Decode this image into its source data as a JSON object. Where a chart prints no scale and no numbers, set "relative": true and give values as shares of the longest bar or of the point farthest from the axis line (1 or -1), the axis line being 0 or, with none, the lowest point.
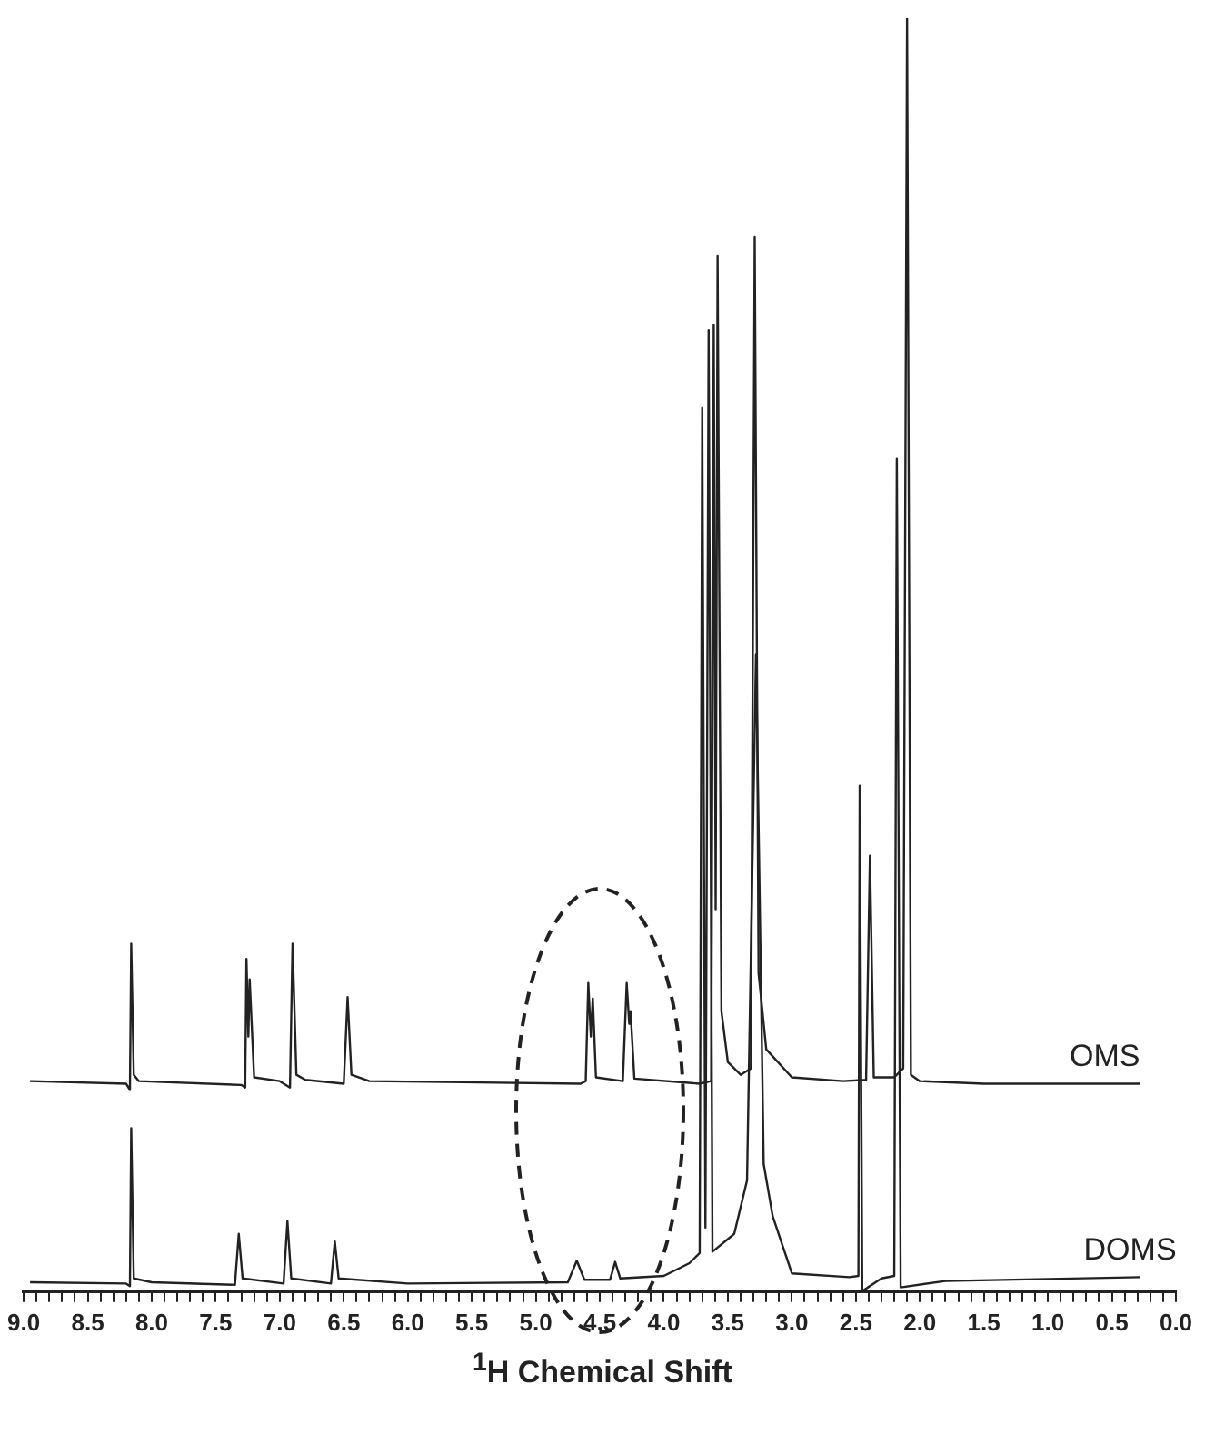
{
  "chart_data": {
    "type": "line",
    "relative": true,
    "xlabel": "$^{1}$H Chemical Shift",
    "xlim": [
      9.0,
      0.0
    ],
    "xticks": [
      {
        "value": 9,
        "label": "9.0"
      },
      {
        "value": 8.9,
        "label": null
      },
      {
        "value": 8.8,
        "label": null
      },
      {
        "value": 8.7,
        "label": null
      },
      {
        "value": 8.6,
        "label": null
      },
      {
        "value": 8.5,
        "label": "8.5"
      },
      {
        "value": 8.4,
        "label": null
      },
      {
        "value": 8.3,
        "label": null
      },
      {
        "value": 8.2,
        "label": null
      },
      {
        "value": 8.1,
        "label": null
      },
      {
        "value": 8,
        "label": "8.0"
      },
      {
        "value": 7.9,
        "label": null
      },
      {
        "value": 7.8,
        "label": null
      },
      {
        "value": 7.7,
        "label": null
      },
      {
        "value": 7.6,
        "label": null
      },
      {
        "value": 7.5,
        "label": "7.5"
      },
      {
        "value": 7.4,
        "label": null
      },
      {
        "value": 7.3,
        "label": null
      },
      {
        "value": 7.2,
        "label": null
      },
      {
        "value": 7.1,
        "label": null
      },
      {
        "value": 7,
        "label": "7.0"
      },
      {
        "value": 6.9,
        "label": null
      },
      {
        "value": 6.8,
        "label": null
      },
      {
        "value": 6.7,
        "label": null
      },
      {
        "value": 6.6,
        "label": null
      },
      {
        "value": 6.5,
        "label": "6.5"
      },
      {
        "value": 6.4,
        "label": null
      },
      {
        "value": 6.3,
        "label": null
      },
      {
        "value": 6.2,
        "label": null
      },
      {
        "value": 6.1,
        "label": null
      },
      {
        "value": 6,
        "label": "6.0"
      },
      {
        "value": 5.9,
        "label": null
      },
      {
        "value": 5.8,
        "label": null
      },
      {
        "value": 5.7,
        "label": null
      },
      {
        "value": 5.6,
        "label": null
      },
      {
        "value": 5.5,
        "label": "5.5"
      },
      {
        "value": 5.4,
        "label": null
      },
      {
        "value": 5.3,
        "label": null
      },
      {
        "value": 5.2,
        "label": null
      },
      {
        "value": 5.1,
        "label": null
      },
      {
        "value": 5,
        "label": "5.0"
      },
      {
        "value": 4.9,
        "label": null
      },
      {
        "value": 4.8,
        "label": null
      },
      {
        "value": 4.7,
        "label": null
      },
      {
        "value": 4.6,
        "label": null
      },
      {
        "value": 4.5,
        "label": "4.5"
      },
      {
        "value": 4.4,
        "label": null
      },
      {
        "value": 4.3,
        "label": null
      },
      {
        "value": 4.2,
        "label": null
      },
      {
        "value": 4.1,
        "label": null
      },
      {
        "value": 4,
        "label": "4.0"
      },
      {
        "value": 3.9,
        "label": null
      },
      {
        "value": 3.8,
        "label": null
      },
      {
        "value": 3.7,
        "label": null
      },
      {
        "value": 3.6,
        "label": null
      },
      {
        "value": 3.5,
        "label": "3.5"
      },
      {
        "value": 3.4,
        "label": null
      },
      {
        "value": 3.3,
        "label": null
      },
      {
        "value": 3.2,
        "label": null
      },
      {
        "value": 3.1,
        "label": null
      },
      {
        "value": 3,
        "label": "3.0"
      },
      {
        "value": 2.9,
        "label": null
      },
      {
        "value": 2.8,
        "label": null
      },
      {
        "value": 2.7,
        "label": null
      },
      {
        "value": 2.6,
        "label": null
      },
      {
        "value": 2.5,
        "label": "2.5"
      },
      {
        "value": 2.4,
        "label": null
      },
      {
        "value": 2.3,
        "label": null
      },
      {
        "value": 2.2,
        "label": null
      },
      {
        "value": 2.1,
        "label": null
      },
      {
        "value": 2,
        "label": "2.0"
      },
      {
        "value": 1.9,
        "label": null
      },
      {
        "value": 1.8,
        "label": null
      },
      {
        "value": 1.7,
        "label": null
      },
      {
        "value": 1.6,
        "label": null
      },
      {
        "value": 1.5,
        "label": "1.5"
      },
      {
        "value": 1.4,
        "label": null
      },
      {
        "value": 1.3,
        "label": null
      },
      {
        "value": 1.2,
        "label": null
      },
      {
        "value": 1.1,
        "label": null
      },
      {
        "value": 1,
        "label": "1.0"
      },
      {
        "value": 0.9,
        "label": null
      },
      {
        "value": 0.8,
        "label": null
      },
      {
        "value": 0.7,
        "label": null
      },
      {
        "value": 0.6,
        "label": null
      },
      {
        "value": 0.5,
        "label": "0.5"
      },
      {
        "value": 0.4,
        "label": null
      },
      {
        "value": 0.3,
        "label": null
      },
      {
        "value": 0.2,
        "label": null
      },
      {
        "value": 0.1,
        "label": null
      },
      {
        "value": 0,
        "label": "0.0"
      }
    ],
    "grid": false,
    "legend": false,
    "marker": "none",
    "line_style": "solid",
    "series": [
      {
        "name": "OMS",
        "color": "#222222",
        "x": [
          8.95,
          8.2,
          8.17,
          8.16,
          8.14,
          8.1,
          7.3,
          7.27,
          7.26,
          7.245,
          7.235,
          7.2,
          7.0,
          6.92,
          6.9,
          6.87,
          6.8,
          6.5,
          6.47,
          6.44,
          6.3,
          4.65,
          4.61,
          4.59,
          4.57,
          4.555,
          4.53,
          4.32,
          4.29,
          4.27,
          4.26,
          4.23,
          3.72,
          3.63,
          3.61,
          3.595,
          3.58,
          3.55,
          3.5,
          3.4,
          3.32,
          3.29,
          3.26,
          3.2,
          3.0,
          2.6,
          2.42,
          2.39,
          2.36,
          2.2,
          2.13,
          2.1,
          2.07,
          2.0,
          1.5,
          0.28
        ],
        "values": [
          0.165,
          0.163,
          0.158,
          0.273,
          0.17,
          0.165,
          0.162,
          0.16,
          0.261,
          0.2,
          0.245,
          0.168,
          0.165,
          0.16,
          0.273,
          0.17,
          0.166,
          0.163,
          0.231,
          0.17,
          0.165,
          0.163,
          0.165,
          0.242,
          0.2,
          0.23,
          0.168,
          0.165,
          0.242,
          0.21,
          0.22,
          0.167,
          0.163,
          0.165,
          0.759,
          0.3,
          0.813,
          0.22,
          0.18,
          0.17,
          0.175,
          0.828,
          0.25,
          0.19,
          0.168,
          0.165,
          0.166,
          0.342,
          0.168,
          0.168,
          0.175,
          1,
          0.17,
          0.165,
          0.163,
          0.163
        ]
      },
      {
        "name": "DOMS",
        "color": "#222222",
        "x": [
          8.95,
          8.2,
          8.17,
          8.16,
          8.14,
          8.0,
          7.35,
          7.32,
          7.29,
          6.97,
          6.94,
          6.91,
          6.6,
          6.57,
          6.54,
          6.0,
          4.75,
          4.68,
          4.62,
          4.42,
          4.38,
          4.34,
          4.0,
          3.8,
          3.72,
          3.7,
          3.675,
          3.65,
          3.62,
          3.45,
          3.35,
          3.28,
          3.22,
          3.15,
          3.0,
          2.55,
          2.48,
          2.47,
          2.45,
          2.3,
          2.2,
          2.18,
          2.15,
          1.8,
          0.28
        ],
        "values": [
          0.007,
          0.006,
          0.004,
          0.128,
          0.01,
          0.007,
          0.005,
          0.045,
          0.01,
          0.006,
          0.055,
          0.01,
          0.006,
          0.039,
          0.01,
          0.006,
          0.007,
          0.024,
          0.009,
          0.009,
          0.023,
          0.01,
          0.012,
          0.022,
          0.03,
          0.694,
          0.05,
          0.755,
          0.031,
          0.045,
          0.087,
          0.5,
          0.1,
          0.059,
          0.014,
          0.011,
          0.012,
          0.397,
          0,
          0.01,
          0.012,
          0.654,
          0.003,
          0.008,
          0.011
        ]
      }
    ]
  }
}
